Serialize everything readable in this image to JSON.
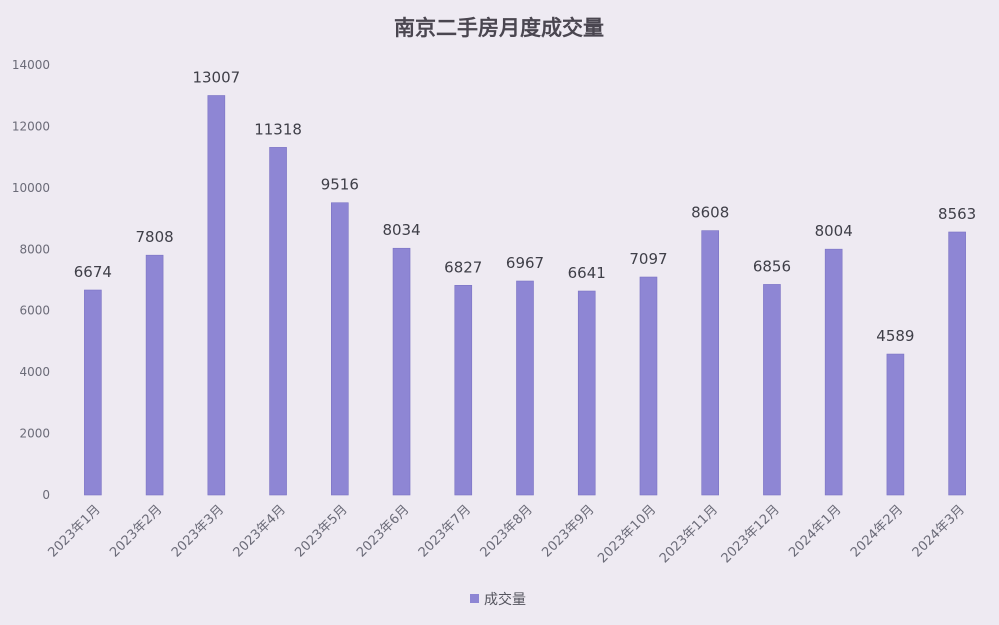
{
  "chart_data": {
    "type": "bar",
    "title": "南京二手房月度成交量",
    "categories": [
      "2023年1月",
      "2023年2月",
      "2023年3月",
      "2023年4月",
      "2023年5月",
      "2023年6月",
      "2023年7月",
      "2023年8月",
      "2023年9月",
      "2023年10月",
      "2023年11月",
      "2023年12月",
      "2024年1月",
      "2024年2月",
      "2024年3月"
    ],
    "series": [
      {
        "name": "成交量",
        "values": [
          6674,
          7808,
          13007,
          11318,
          9516,
          8034,
          6827,
          6967,
          6641,
          7097,
          8608,
          6856,
          8004,
          4589,
          8563
        ]
      }
    ],
    "yticks": [
      "0",
      "2000",
      "4000",
      "6000",
      "8000",
      "10000",
      "12000",
      "14000"
    ],
    "ylim": [
      0,
      14000
    ],
    "xlabel": "",
    "ylabel": "",
    "grid": false,
    "legend_position": "bottom-center",
    "colors": {
      "bar": "#8e86d4",
      "bar_stroke": "#7b73c4",
      "background": "#eeeaf2"
    }
  }
}
